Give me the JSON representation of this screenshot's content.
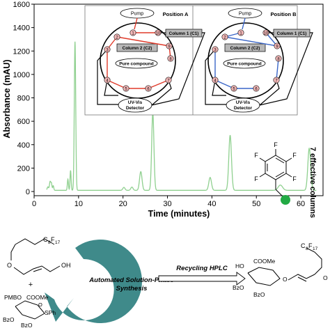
{
  "chart_data": {
    "type": "line",
    "xlabel": "Time (minutes)",
    "ylabel": "Absorbance (mAU)",
    "xlim": [
      0,
      65
    ],
    "ylim": [
      0,
      1600
    ],
    "xticks": [
      0,
      10,
      20,
      30,
      40,
      50,
      60
    ],
    "yticks": [
      0,
      200,
      400,
      600,
      800,
      1000,
      1200,
      1400,
      1600
    ],
    "line_color": "#8fd08f",
    "baseline": 10,
    "peaks": [
      {
        "t": 3.1,
        "h": 30,
        "w": 0.15
      },
      {
        "t": 3.6,
        "h": 75,
        "w": 0.15
      },
      {
        "t": 3.9,
        "h": 55,
        "w": 0.12
      },
      {
        "t": 4.3,
        "h": 40,
        "w": 0.12
      },
      {
        "t": 7.6,
        "h": 95,
        "w": 0.12
      },
      {
        "t": 8.2,
        "h": 170,
        "w": 0.12
      },
      {
        "t": 9.2,
        "h": 1270,
        "w": 0.16
      },
      {
        "t": 20.2,
        "h": 25,
        "w": 0.25
      },
      {
        "t": 22.0,
        "h": 28,
        "w": 0.25
      },
      {
        "t": 24.0,
        "h": 160,
        "w": 0.28
      },
      {
        "t": 26.7,
        "h": 665,
        "w": 0.25
      },
      {
        "t": 39.6,
        "h": 110,
        "w": 0.3
      },
      {
        "t": 44.1,
        "h": 470,
        "w": 0.3
      },
      {
        "t": 55.4,
        "h": 45,
        "w": 0.5
      },
      {
        "t": 61.9,
        "h": 360,
        "w": 0.32
      }
    ],
    "annotation": "7 effective columns"
  },
  "inset": {
    "panel_a_title": "Position A",
    "panel_b_title": "Position B",
    "pump": "Pump",
    "column1": "Column 1 (C1)",
    "column2": "Column 2 (C2)",
    "pure": "Pure compound",
    "detector_line1": "UV-Vis",
    "detector_line2": "Detector",
    "ports": [
      "1",
      "2",
      "3",
      "4",
      "5",
      "6",
      "7",
      "8",
      "9",
      "10"
    ],
    "flow_color_a": "#e03a2a",
    "flow_color_b": "#3a66c8"
  },
  "scheme": {
    "r1_sub": "C",
    "r1_sub8": "8",
    "r1_F": "F",
    "r1_F17": "17",
    "r1_oh": "OH",
    "plus": "+",
    "pmbo": "PMBO",
    "coome": "COOMe",
    "sph": "SPh",
    "bzo": "BzO",
    "bz": "Bz",
    "o_atom": "O",
    "cycle_line1": "Automated Solution-Phase",
    "cycle_line2": "Synthesis",
    "recycling": "Recycling HPLC",
    "p_ho": "HO",
    "p_coome": "COOMe",
    "p_bzo": "BzO",
    "p_c8f17": "C",
    "p_sub8": "8",
    "p_F": "F",
    "p_F17": "17",
    "p_o": "O",
    "arrow_color": "#3f8a8a",
    "ring_color": "#22aa44"
  }
}
